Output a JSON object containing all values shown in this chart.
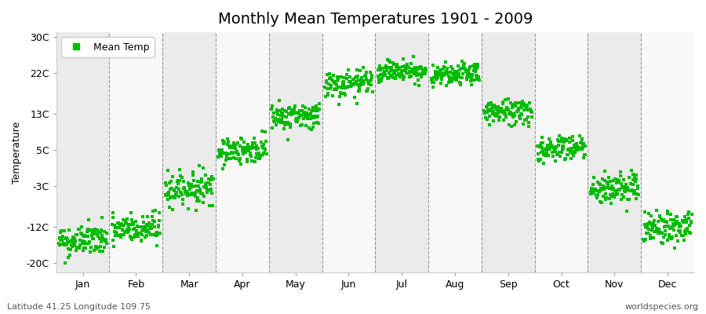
{
  "title": "Monthly Mean Temperatures 1901 - 2009",
  "ylabel": "Temperature",
  "yticks": [
    -20,
    -12,
    -3,
    5,
    13,
    22,
    30
  ],
  "ytick_labels": [
    "-20C",
    "-12C",
    "-3C",
    "5C",
    "13C",
    "22C",
    "30C"
  ],
  "ylim": [
    -22,
    31
  ],
  "months": [
    "Jan",
    "Feb",
    "Mar",
    "Apr",
    "May",
    "Jun",
    "Jul",
    "Aug",
    "Sep",
    "Oct",
    "Nov",
    "Dec"
  ],
  "mean_temps": [
    -15.0,
    -12.5,
    -3.5,
    5.0,
    12.5,
    19.5,
    22.5,
    21.5,
    13.5,
    5.5,
    -3.5,
    -12.0
  ],
  "std_temps": [
    1.8,
    1.8,
    1.8,
    1.5,
    1.5,
    1.5,
    1.2,
    1.2,
    1.5,
    1.5,
    1.8,
    1.8
  ],
  "warming_trend": [
    0.5,
    0.5,
    0.5,
    0.5,
    0.5,
    0.5,
    0.5,
    0.5,
    0.5,
    0.5,
    0.5,
    0.5
  ],
  "n_years": 109,
  "dot_color": "#00BB00",
  "dot_size": 5,
  "background_light": "#EBEBEB",
  "background_white": "#F8F8F8",
  "legend_label": "Mean Temp",
  "bottom_left": "Latitude 41.25 Longitude 109.75",
  "bottom_right": "worldspecies.org",
  "title_fontsize": 14,
  "axis_fontsize": 9,
  "tick_fontsize": 9,
  "seed": 42
}
